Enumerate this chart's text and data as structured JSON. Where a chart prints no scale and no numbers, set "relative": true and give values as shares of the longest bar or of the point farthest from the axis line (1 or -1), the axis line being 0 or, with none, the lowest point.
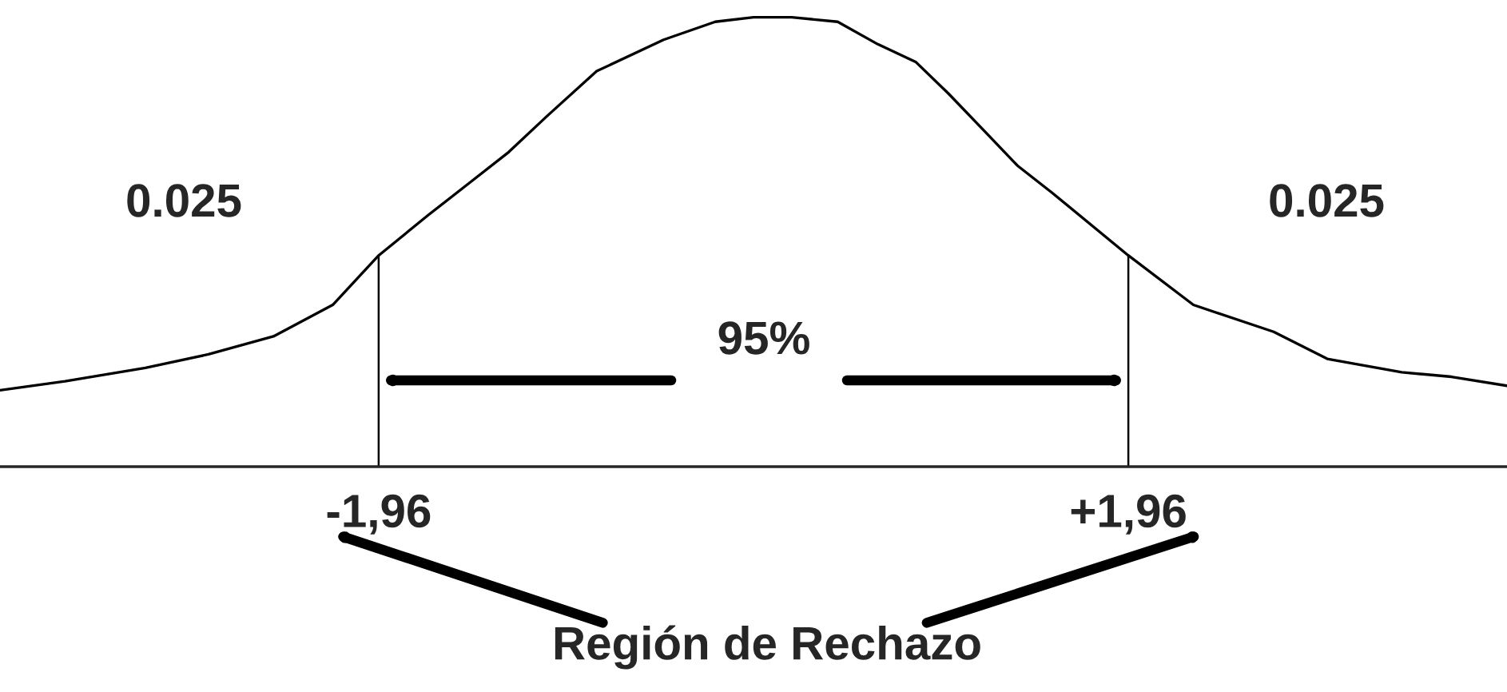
{
  "chart_data": {
    "type": "line",
    "relative": true,
    "x": [
      -3.94,
      -3.6,
      -3.18,
      -2.85,
      -2.51,
      -2.2,
      -1.96,
      -1.7,
      -1.49,
      -1.28,
      -1.08,
      -0.82,
      -0.47,
      -0.2,
      0,
      0.2,
      0.44,
      0.65,
      0.85,
      1.02,
      1.2,
      1.38,
      1.56,
      1.96,
      2.3,
      2.72,
      3.0,
      3.39,
      3.65,
      3.94
    ],
    "series": [
      {
        "color": "#000000",
        "values": [
          0.17,
          0.19,
          0.22,
          0.25,
          0.29,
          0.36,
          0.47,
          0.56,
          0.63,
          0.7,
          0.78,
          0.88,
          0.95,
          0.99,
          1.0,
          1.0,
          0.99,
          0.94,
          0.9,
          0.83,
          0.75,
          0.67,
          0.61,
          0.47,
          0.36,
          0.3,
          0.24,
          0.21,
          0.2,
          0.18
        ]
      }
    ],
    "xlim": [
      -3.94,
      3.94
    ],
    "xticks": [
      {
        "value": -1.96,
        "label": "-1,96"
      },
      {
        "value": 1.96,
        "label": "+1,96"
      }
    ],
    "ref_lines": [
      {
        "axis": "x",
        "value": -1.96
      },
      {
        "axis": "x",
        "value": 1.96
      }
    ],
    "annotations": [
      "0.025",
      "0.025",
      "95%",
      "Región de Rechazo"
    ],
    "legend": false,
    "marker": "none",
    "line_style": "solid"
  }
}
